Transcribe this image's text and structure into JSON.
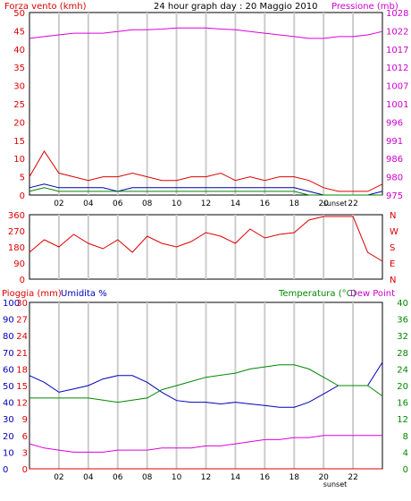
{
  "chart_data": [
    {
      "type": "line",
      "title": "24 hour graph day : 20 Maggio 2010",
      "ylabel_left": "Forza vento (kmh)",
      "ylabel_right": "Pressione (mb)",
      "x_tick_labels": [
        "02",
        "04",
        "06",
        "08",
        "10",
        "12",
        "14",
        "16",
        "18",
        "20",
        "22"
      ],
      "sunset_label": "sunset",
      "ylim_left": [
        0,
        50
      ],
      "ylim_right": [
        975,
        1028
      ],
      "y_ticks_left": [
        "0",
        "5",
        "10",
        "15",
        "20",
        "25",
        "30",
        "35",
        "40",
        "45",
        "50"
      ],
      "y_ticks_right": [
        "975",
        "980",
        "986",
        "991",
        "996",
        "1001",
        "1007",
        "1012",
        "1017",
        "1022",
        "1028"
      ],
      "grid": true,
      "x_hours": [
        0,
        1,
        2,
        3,
        4,
        5,
        6,
        7,
        8,
        9,
        10,
        11,
        12,
        13,
        14,
        15,
        16,
        17,
        18,
        19,
        20,
        21,
        22,
        23,
        24
      ],
      "series": [
        {
          "values": [
            5,
            12,
            6,
            5,
            4,
            5,
            5,
            6,
            5,
            4,
            4,
            5,
            5,
            6,
            4,
            5,
            4,
            5,
            5,
            4,
            2,
            1,
            1,
            1,
            3
          ],
          "color": "#dd0000"
        },
        {
          "values": [
            2,
            3,
            2,
            2,
            2,
            2,
            1,
            2,
            2,
            2,
            2,
            2,
            2,
            2,
            2,
            2,
            2,
            2,
            2,
            1,
            0,
            0,
            0,
            0,
            1
          ],
          "color": "#0000aa"
        },
        {
          "values": [
            1,
            2,
            1,
            1,
            1,
            1,
            1,
            1,
            1,
            1,
            1,
            1,
            1,
            1,
            1,
            1,
            1,
            1,
            1,
            0,
            0,
            0,
            0,
            0,
            0
          ],
          "color": "#008800"
        },
        {
          "values": [
            1020.5,
            1021,
            1021.5,
            1022,
            1022,
            1022,
            1022.5,
            1023,
            1023,
            1023.2,
            1023.5,
            1023.5,
            1023.5,
            1023.2,
            1023,
            1022.5,
            1022,
            1021.5,
            1021,
            1020.5,
            1020.5,
            1021,
            1021,
            1021.5,
            1022.5
          ],
          "color": "#dd00dd"
        }
      ]
    },
    {
      "type": "line",
      "ylim": [
        0,
        360
      ],
      "y_ticks": [
        "0",
        "90",
        "180",
        "270",
        "360"
      ],
      "compass_labels": [
        "N",
        "W",
        "S",
        "E",
        "N"
      ],
      "x_hours": [
        0,
        1,
        2,
        3,
        4,
        5,
        6,
        7,
        8,
        9,
        10,
        11,
        12,
        13,
        14,
        15,
        16,
        17,
        18,
        19,
        20,
        21,
        22,
        23,
        24
      ],
      "series": [
        {
          "values": [
            150,
            220,
            180,
            250,
            200,
            170,
            220,
            150,
            240,
            200,
            180,
            210,
            260,
            240,
            200,
            280,
            230,
            250,
            260,
            330,
            350,
            350,
            350,
            150,
            100
          ],
          "color": "#dd0000"
        }
      ]
    },
    {
      "type": "line",
      "ylabel_left": "Pioggia (mm)",
      "ylabel_left2": "Umidita %",
      "ylabel_right": "Temperatura (°C)",
      "ylabel_right2": "Dew Point",
      "ylim_rain": [
        0,
        30
      ],
      "ylim_humidity": [
        0,
        100
      ],
      "ylim_temp": [
        0,
        40
      ],
      "y_ticks_rain": [
        "0",
        "3",
        "6",
        "9",
        "12",
        "15",
        "18",
        "21",
        "24",
        "27",
        "30"
      ],
      "y_ticks_humidity": [
        "0",
        "10",
        "20",
        "30",
        "40",
        "50",
        "60",
        "70",
        "80",
        "90",
        "100"
      ],
      "y_ticks_temp": [
        "0",
        "4",
        "8",
        "12",
        "16",
        "20",
        "24",
        "28",
        "32",
        "36",
        "40"
      ],
      "x_tick_labels": [
        "02",
        "04",
        "06",
        "08",
        "10",
        "12",
        "14",
        "16",
        "18",
        "20",
        "22"
      ],
      "sunset_label": "sunset",
      "x_hours": [
        0,
        1,
        2,
        3,
        4,
        5,
        6,
        7,
        8,
        9,
        10,
        11,
        12,
        13,
        14,
        15,
        16,
        17,
        18,
        19,
        20,
        21,
        22,
        23,
        24
      ],
      "series": [
        {
          "values": [
            56,
            52,
            46,
            48,
            50,
            54,
            56,
            56,
            52,
            46,
            41,
            40,
            40,
            39,
            40,
            39,
            38,
            37,
            37,
            40,
            45,
            50,
            50,
            50,
            64
          ],
          "color": "#0000bb"
        },
        {
          "values": [
            17,
            17,
            17,
            17,
            17,
            16.5,
            16,
            16.5,
            17,
            19,
            20,
            21,
            22,
            22.5,
            23,
            24,
            24.5,
            25,
            25,
            24,
            22,
            20,
            20,
            20,
            17.5
          ],
          "color": "#008800"
        },
        {
          "values": [
            6,
            5,
            4.5,
            4,
            4,
            4,
            4.5,
            4.5,
            4.5,
            5,
            5,
            5,
            5.5,
            5.5,
            6,
            6.5,
            7,
            7,
            7.5,
            7.5,
            8,
            8,
            8,
            8,
            8
          ],
          "color": "#dd00dd"
        },
        {
          "values": [
            0,
            0,
            0,
            0,
            0,
            0,
            0,
            0,
            0,
            0,
            0,
            0,
            0,
            0,
            0,
            0,
            0,
            0,
            0,
            0,
            0,
            0,
            0,
            0,
            0
          ],
          "color": "#dd0000"
        }
      ]
    }
  ]
}
